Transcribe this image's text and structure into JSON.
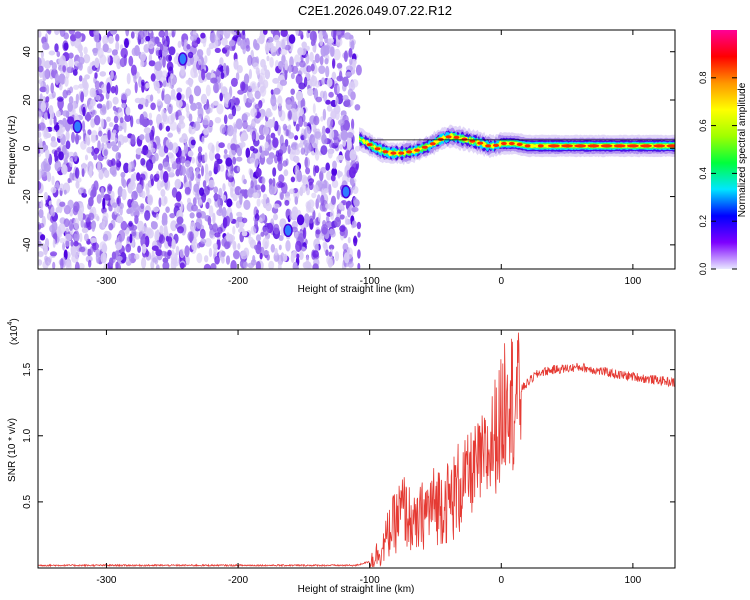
{
  "title": "C2E1.2026.049.07.22.R12",
  "colors": {
    "snr_line": "#e53a33",
    "colorbar_stops": [
      "#e8e8ff",
      "#7d00ff",
      "#0000ff",
      "#00e6ff",
      "#00ff3c",
      "#a0ff00",
      "#ffff00",
      "#ff9600",
      "#ff0000",
      "#ff0096"
    ],
    "spectrogram_dots": [
      "#d9ccf5",
      "#b79cf0",
      "#8f5ee9",
      "#6a22e6",
      "#4b00e0",
      "#2f7dff"
    ]
  },
  "chart_data": [
    {
      "type": "heatmap",
      "xlabel": "Height of straight line (km)",
      "ylabel": "Frequency (Hz)",
      "xlim": [
        -352,
        132
      ],
      "ylim": [
        -50,
        49
      ],
      "xticks": [
        -300,
        -200,
        -100,
        0,
        100
      ],
      "xtick_labels": [
        "-300",
        "-200",
        "-100",
        "0",
        "100"
      ],
      "yticks": [
        -40,
        -20,
        0,
        20,
        40
      ],
      "ytick_labels": [
        "-40",
        "-20",
        "0",
        "20",
        "40"
      ],
      "colorbar": {
        "label": "Normalized spectral amplitude",
        "range": [
          0,
          1
        ],
        "ticks": [
          0.0,
          0.2,
          0.4,
          0.6,
          0.8
        ],
        "tick_labels": [
          "0.0",
          "0.2",
          "0.4",
          "0.6",
          "0.8"
        ]
      },
      "noise_region_x": [
        -352,
        -108
      ],
      "ridge": {
        "x": [
          -108,
          -95,
          -85,
          -75,
          -65,
          -55,
          -45,
          -38,
          -30,
          -22,
          -15,
          -10,
          -5,
          0,
          10,
          20,
          40,
          60,
          80,
          100,
          132
        ],
        "y": [
          4,
          0,
          -2,
          -2,
          -1,
          1,
          4,
          5,
          4,
          3,
          2,
          1,
          1,
          2,
          2,
          1,
          1,
          1,
          1,
          1,
          1
        ]
      }
    },
    {
      "type": "line",
      "xlabel": "Height of straight line (km)",
      "ylabel": "SNR (10 * v/v)",
      "y_multiplier_label": "(x10",
      "y_multiplier_exp": "4",
      "y_multiplier_close": ")",
      "xlim": [
        -352,
        132
      ],
      "ylim": [
        0,
        1.8
      ],
      "xticks": [
        -300,
        -200,
        -100,
        0,
        100
      ],
      "xtick_labels": [
        "-300",
        "-200",
        "-100",
        "0",
        "100"
      ],
      "yticks": [
        0.5,
        1.0,
        1.5
      ],
      "ytick_labels": [
        "0.5",
        "1.0",
        "1.5"
      ],
      "series": [
        {
          "x": [
            -352,
            -300,
            -250,
            -200,
            -150,
            -110,
            -100,
            -90,
            -85,
            -80,
            -75,
            -70,
            -65,
            -60,
            -55,
            -50,
            -45,
            -40,
            -35,
            -30,
            -25,
            -20,
            -15,
            -10,
            -5,
            0,
            3,
            5,
            8,
            10,
            15,
            20,
            25,
            30,
            40,
            50,
            60,
            70,
            80,
            90,
            100,
            110,
            120,
            132
          ],
          "y": [
            0.02,
            0.02,
            0.02,
            0.02,
            0.02,
            0.02,
            0.05,
            0.15,
            0.28,
            0.35,
            0.45,
            0.38,
            0.3,
            0.4,
            0.45,
            0.48,
            0.5,
            0.5,
            0.55,
            0.65,
            0.7,
            0.75,
            0.8,
            0.85,
            1.0,
            1.1,
            1.3,
            1.6,
            1.25,
            1.3,
            1.35,
            1.4,
            1.45,
            1.48,
            1.5,
            1.51,
            1.52,
            1.5,
            1.48,
            1.46,
            1.45,
            1.43,
            1.42,
            1.4
          ]
        }
      ]
    }
  ]
}
